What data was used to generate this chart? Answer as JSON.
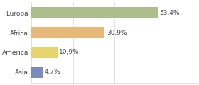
{
  "categories": [
    "Europa",
    "Africa",
    "America",
    "Asia"
  ],
  "values": [
    53.4,
    30.9,
    10.9,
    4.7
  ],
  "labels": [
    "53,4%",
    "30,9%",
    "10,9%",
    "4,7%"
  ],
  "bar_colors": [
    "#abbe8c",
    "#e8b87a",
    "#e8d46e",
    "#7a8abb"
  ],
  "background_color": "#ffffff",
  "xlim": [
    0,
    70
  ],
  "bar_height": 0.55,
  "label_fontsize": 6.5,
  "category_fontsize": 6.5,
  "grid_ticks": [
    0,
    17.5,
    35,
    52.5,
    70
  ],
  "grid_color": "#dddddd"
}
